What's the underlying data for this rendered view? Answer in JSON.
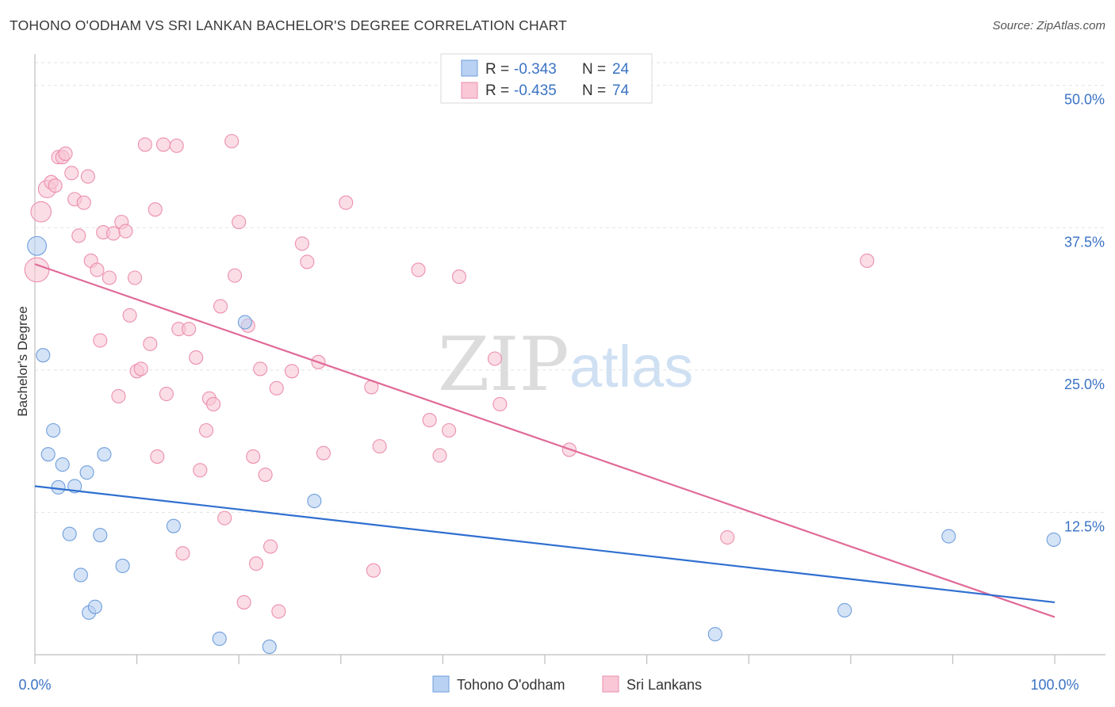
{
  "header": {
    "title": "TOHONO O'ODHAM VS SRI LANKAN BACHELOR'S DEGREE CORRELATION CHART",
    "source": "Source: ZipAtlas.com"
  },
  "legend_top": {
    "rows": [
      {
        "r_label": "R = ",
        "r_value": "-0.343",
        "n_label": "N = ",
        "n_value": "24"
      },
      {
        "r_label": "R = ",
        "r_value": "-0.435",
        "n_label": "N = ",
        "n_value": "74"
      }
    ]
  },
  "legend_bottom": {
    "items": [
      {
        "label": "Tohono O'odham"
      },
      {
        "label": "Sri Lankans"
      }
    ]
  },
  "watermark": {
    "part1": "ZIP",
    "part2": "atlas"
  },
  "chart_data": {
    "type": "scatter",
    "title": "TOHONO O'ODHAM VS SRI LANKAN BACHELOR'S DEGREE CORRELATION CHART",
    "xlabel": "",
    "ylabel": "Bachelor's Degree",
    "xlim": [
      0,
      100
    ],
    "ylim": [
      0,
      52
    ],
    "x_tick_labels": [
      "0.0%",
      "100.0%"
    ],
    "y_ticks": [
      12.5,
      25.0,
      37.5,
      50.0
    ],
    "y_tick_labels": [
      "12.5%",
      "25.0%",
      "37.5%",
      "50.0%"
    ],
    "grid": "horizontal dashed",
    "legend_position": "top-center",
    "colors": {
      "tohono_fill": "#b9d1f2",
      "tohono_stroke": "#6f9fdc",
      "tohono_line": "#2f6fd0",
      "srilankan_fill": "#f9c7d6",
      "srilankan_stroke": "#ec8fae",
      "srilankan_line": "#e06a97",
      "tick_text": "#3b73c4"
    },
    "series": [
      {
        "name": "Tohono O'odham",
        "trend": {
          "x0": 0,
          "y0": 14.8,
          "x1": 100,
          "y1": 4.6
        },
        "points": [
          {
            "x": 0.2,
            "y": 35.9,
            "s": 1.4
          },
          {
            "x": 0.8,
            "y": 26.3
          },
          {
            "x": 1.3,
            "y": 17.6
          },
          {
            "x": 1.8,
            "y": 19.7
          },
          {
            "x": 2.3,
            "y": 14.7
          },
          {
            "x": 2.7,
            "y": 16.7
          },
          {
            "x": 3.4,
            "y": 10.6
          },
          {
            "x": 3.9,
            "y": 14.8
          },
          {
            "x": 4.5,
            "y": 7.0
          },
          {
            "x": 5.1,
            "y": 16.0
          },
          {
            "x": 5.3,
            "y": 3.7
          },
          {
            "x": 5.9,
            "y": 4.2
          },
          {
            "x": 6.4,
            "y": 10.5
          },
          {
            "x": 6.8,
            "y": 17.6
          },
          {
            "x": 8.6,
            "y": 7.8
          },
          {
            "x": 13.6,
            "y": 11.3
          },
          {
            "x": 18.1,
            "y": 1.4
          },
          {
            "x": 20.6,
            "y": 29.2
          },
          {
            "x": 23.0,
            "y": 0.7
          },
          {
            "x": 27.4,
            "y": 13.5
          },
          {
            "x": 66.7,
            "y": 1.8
          },
          {
            "x": 79.4,
            "y": 3.9
          },
          {
            "x": 89.6,
            "y": 10.4
          },
          {
            "x": 99.9,
            "y": 10.1
          }
        ]
      },
      {
        "name": "Sri Lankans",
        "trend": {
          "x0": 0,
          "y0": 34.3,
          "x1": 100,
          "y1": 3.3
        },
        "points": [
          {
            "x": 0.2,
            "y": 33.8,
            "s": 1.8
          },
          {
            "x": 0.6,
            "y": 38.9,
            "s": 1.5
          },
          {
            "x": 1.2,
            "y": 40.9,
            "s": 1.3
          },
          {
            "x": 1.6,
            "y": 41.5
          },
          {
            "x": 2.0,
            "y": 41.2
          },
          {
            "x": 2.3,
            "y": 43.7
          },
          {
            "x": 2.7,
            "y": 43.7
          },
          {
            "x": 3.0,
            "y": 44.0
          },
          {
            "x": 3.6,
            "y": 42.3
          },
          {
            "x": 3.9,
            "y": 40.0
          },
          {
            "x": 4.3,
            "y": 36.8
          },
          {
            "x": 4.8,
            "y": 39.7
          },
          {
            "x": 5.2,
            "y": 42.0
          },
          {
            "x": 5.5,
            "y": 34.6
          },
          {
            "x": 6.1,
            "y": 33.8
          },
          {
            "x": 6.4,
            "y": 27.6
          },
          {
            "x": 6.7,
            "y": 37.1
          },
          {
            "x": 7.3,
            "y": 33.1
          },
          {
            "x": 7.7,
            "y": 37.0
          },
          {
            "x": 8.2,
            "y": 22.7
          },
          {
            "x": 8.5,
            "y": 38.0
          },
          {
            "x": 8.9,
            "y": 37.2
          },
          {
            "x": 9.3,
            "y": 29.8
          },
          {
            "x": 9.8,
            "y": 33.1
          },
          {
            "x": 10.0,
            "y": 24.9
          },
          {
            "x": 10.4,
            "y": 25.1
          },
          {
            "x": 10.8,
            "y": 44.8
          },
          {
            "x": 11.3,
            "y": 27.3
          },
          {
            "x": 11.8,
            "y": 39.1
          },
          {
            "x": 12.0,
            "y": 17.4
          },
          {
            "x": 12.6,
            "y": 44.8
          },
          {
            "x": 12.9,
            "y": 22.9
          },
          {
            "x": 13.9,
            "y": 44.7
          },
          {
            "x": 14.1,
            "y": 28.6
          },
          {
            "x": 14.5,
            "y": 8.9
          },
          {
            "x": 15.1,
            "y": 28.6
          },
          {
            "x": 15.8,
            "y": 26.1
          },
          {
            "x": 16.2,
            "y": 16.2
          },
          {
            "x": 16.8,
            "y": 19.7
          },
          {
            "x": 17.1,
            "y": 22.5
          },
          {
            "x": 17.5,
            "y": 22.0
          },
          {
            "x": 18.2,
            "y": 30.6
          },
          {
            "x": 18.6,
            "y": 12.0
          },
          {
            "x": 19.3,
            "y": 45.1
          },
          {
            "x": 19.6,
            "y": 33.3
          },
          {
            "x": 20.0,
            "y": 38.0
          },
          {
            "x": 20.5,
            "y": 4.6
          },
          {
            "x": 20.9,
            "y": 28.9
          },
          {
            "x": 21.4,
            "y": 17.4
          },
          {
            "x": 21.7,
            "y": 8.0
          },
          {
            "x": 22.1,
            "y": 25.1
          },
          {
            "x": 22.6,
            "y": 15.8
          },
          {
            "x": 23.1,
            "y": 9.5
          },
          {
            "x": 23.7,
            "y": 23.4
          },
          {
            "x": 23.9,
            "y": 3.8
          },
          {
            "x": 25.2,
            "y": 24.9
          },
          {
            "x": 26.2,
            "y": 36.1
          },
          {
            "x": 26.7,
            "y": 34.5
          },
          {
            "x": 27.8,
            "y": 25.7
          },
          {
            "x": 28.3,
            "y": 17.7
          },
          {
            "x": 30.5,
            "y": 39.7
          },
          {
            "x": 33.0,
            "y": 23.5
          },
          {
            "x": 33.2,
            "y": 7.4
          },
          {
            "x": 33.8,
            "y": 18.3
          },
          {
            "x": 37.6,
            "y": 33.8
          },
          {
            "x": 38.7,
            "y": 20.6
          },
          {
            "x": 39.7,
            "y": 17.5
          },
          {
            "x": 40.6,
            "y": 19.7
          },
          {
            "x": 41.6,
            "y": 33.2
          },
          {
            "x": 45.1,
            "y": 26.0
          },
          {
            "x": 45.6,
            "y": 22.0
          },
          {
            "x": 52.4,
            "y": 18.0
          },
          {
            "x": 67.9,
            "y": 10.3
          },
          {
            "x": 81.6,
            "y": 34.6
          }
        ]
      }
    ]
  }
}
